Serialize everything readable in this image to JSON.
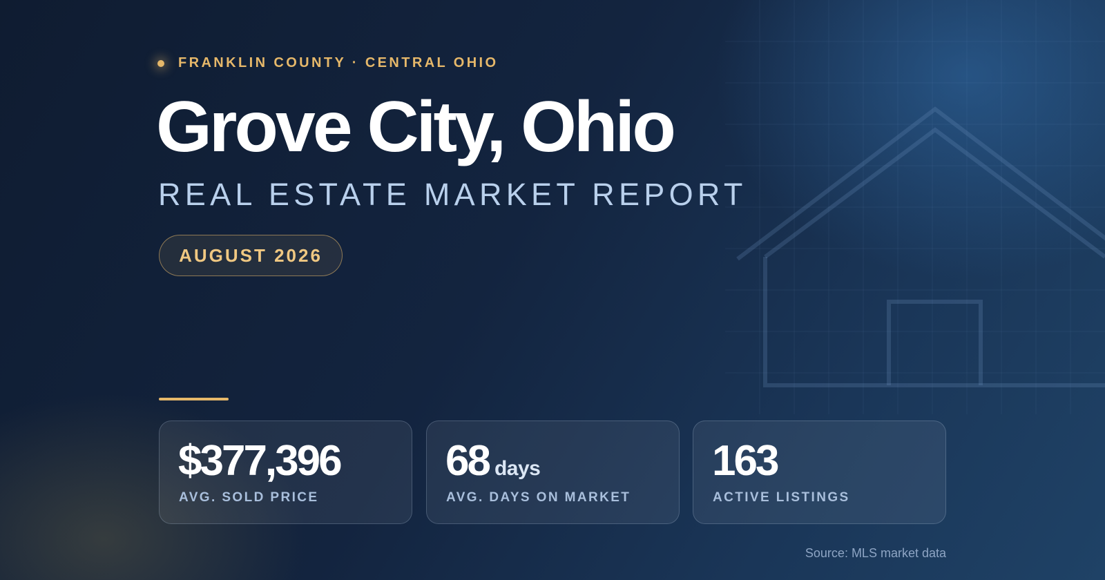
{
  "header": {
    "eyebrow": "FRANKLIN COUNTY · CENTRAL OHIO",
    "title": "Grove City, Ohio",
    "subtitle": "REAL ESTATE MARKET REPORT",
    "badge": "AUGUST 2026"
  },
  "stats": [
    {
      "value": "$377,396",
      "label": "AVG. SOLD PRICE"
    },
    {
      "value": "68",
      "unit": "days",
      "label": "AVG. DAYS ON MARKET"
    },
    {
      "value": "163",
      "label": "ACTIVE LISTINGS"
    }
  ],
  "footer": {
    "source": "Source: MLS market data"
  }
}
